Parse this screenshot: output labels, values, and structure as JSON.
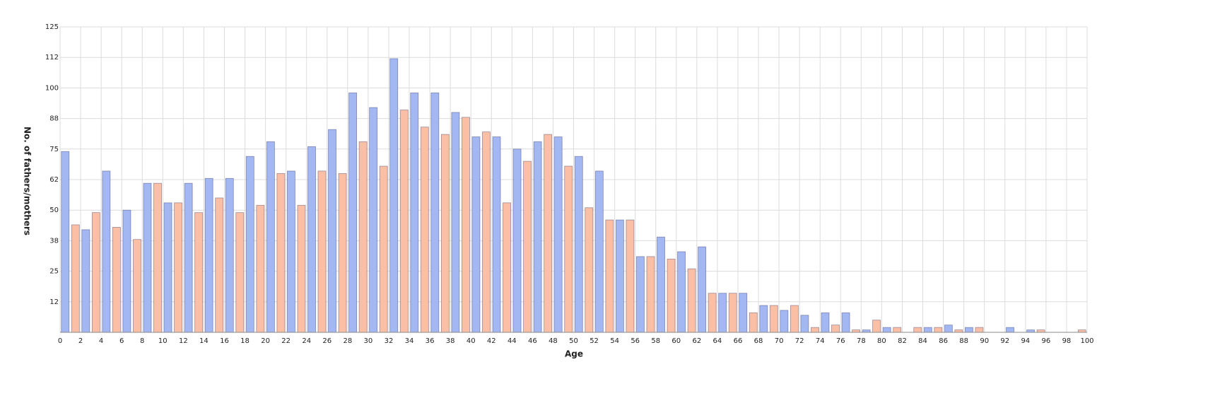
{
  "chart_data": {
    "type": "bar",
    "x_label": "Age",
    "y_label": "No. of fathers/mothers",
    "xlim": [
      0,
      100
    ],
    "ylim": [
      0,
      125
    ],
    "grid": true,
    "xticks": [
      0,
      2,
      4,
      6,
      8,
      10,
      12,
      14,
      16,
      18,
      20,
      22,
      24,
      26,
      28,
      30,
      32,
      34,
      36,
      38,
      40,
      42,
      44,
      46,
      48,
      50,
      52,
      54,
      56,
      58,
      60,
      62,
      64,
      66,
      68,
      70,
      72,
      74,
      76,
      78,
      80,
      82,
      84,
      86,
      88,
      90,
      92,
      94,
      96,
      98,
      100
    ],
    "yticks": [
      {
        "value": 12.5,
        "label": "12"
      },
      25,
      {
        "value": 37.5,
        "label": "38"
      },
      50,
      {
        "value": 62.5,
        "label": "62"
      },
      75,
      {
        "value": 87.5,
        "label": "88"
      },
      100,
      {
        "value": 112.5,
        "label": "112"
      },
      125
    ],
    "series": [
      {
        "color": "#a3b7f2",
        "x": [
          0,
          2,
          4,
          6,
          8,
          10,
          12,
          14,
          16,
          18,
          20,
          22,
          24,
          26,
          28,
          30,
          32,
          34,
          36,
          38,
          40,
          42,
          44,
          46,
          48,
          50,
          52,
          54,
          56,
          58,
          60,
          62,
          64,
          66,
          68,
          70,
          72,
          74,
          76,
          78,
          80,
          82,
          84,
          86,
          88,
          90,
          92,
          94,
          96,
          98
        ],
        "values": [
          74,
          42,
          66,
          50,
          61,
          53,
          61,
          63,
          63,
          72,
          78,
          66,
          76,
          83,
          98,
          92,
          112,
          98,
          98,
          90,
          80,
          80,
          75,
          78,
          80,
          72,
          66,
          46,
          31,
          39,
          33,
          35,
          16,
          16,
          11,
          9,
          7,
          8,
          8,
          1,
          2,
          0,
          2,
          3,
          2,
          0,
          2,
          1,
          0,
          0
        ]
      },
      {
        "color": "#fbbfa5",
        "x": [
          1,
          3,
          5,
          7,
          9,
          11,
          13,
          15,
          17,
          19,
          21,
          23,
          25,
          27,
          29,
          31,
          33,
          35,
          37,
          39,
          41,
          43,
          45,
          47,
          49,
          51,
          53,
          55,
          57,
          59,
          61,
          63,
          65,
          67,
          69,
          71,
          73,
          75,
          77,
          79,
          81,
          83,
          85,
          87,
          89,
          91,
          93,
          95,
          97,
          99
        ],
        "values": [
          44,
          49,
          43,
          38,
          61,
          53,
          49,
          55,
          49,
          52,
          65,
          52,
          66,
          65,
          78,
          68,
          91,
          84,
          81,
          88,
          82,
          53,
          70,
          81,
          68,
          51,
          46,
          46,
          31,
          30,
          26,
          16,
          16,
          8,
          11,
          11,
          2,
          3,
          1,
          5,
          2,
          2,
          2,
          1,
          2,
          0,
          0,
          1,
          0,
          1
        ]
      }
    ]
  }
}
